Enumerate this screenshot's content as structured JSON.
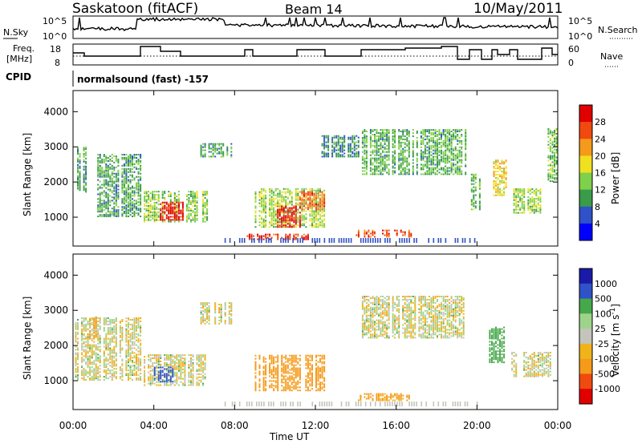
{
  "header": {
    "title": "Saskatoon (fitACF)",
    "beam": "Beam 14",
    "date": "10/May/2011"
  },
  "panels": {
    "nsky_label": "N.Sky",
    "nsky_ticks": [
      "10^5",
      "10^0"
    ],
    "nsearch_ticks": [
      "10^5",
      "10^0"
    ],
    "nsearch_label": "N.Search",
    "freq_label_1": "Freq.",
    "freq_label_2": "[MHz]",
    "freq_ticks": [
      "18",
      "8"
    ],
    "nave_ticks": [
      "60",
      "0"
    ],
    "nave_label": "Nave",
    "cpid_label": "CPID",
    "cpid_text": "normalsound (fast) -157"
  },
  "colors": {
    "power": [
      "#0000ff",
      "#2f52c8",
      "#3a9b4a",
      "#7fd04a",
      "#f0e020",
      "#f59a1a",
      "#f04a10",
      "#e00000"
    ],
    "velocity": [
      "#e00000",
      "#f04a10",
      "#f59a1a",
      "#f0b41a",
      "#c4c4bc",
      "#9ed48a",
      "#46a84a",
      "#2f52c8",
      "#1a1aa8"
    ]
  },
  "chart_data": [
    {
      "type": "heatmap",
      "name": "Power",
      "ylabel": "Slant Range [km]",
      "xlabel": "Time UT",
      "xticks": [
        "00:00",
        "04:00",
        "08:00",
        "12:00",
        "16:00",
        "20:00",
        "00:00"
      ],
      "yticks": [
        "1000",
        "2000",
        "3000",
        "4000"
      ],
      "xlim_hours": [
        0,
        24
      ],
      "ylim_km": [
        180,
        4600
      ],
      "colorbar_label": "Power [dB]",
      "colorbar_ticks": [
        "28",
        "24",
        "20",
        "16",
        "12",
        "8",
        "4"
      ],
      "clim": [
        0,
        30
      ],
      "echo_regions": [
        {
          "t0": 0.1,
          "t1": 0.9,
          "r0": 1700,
          "r1": 3000,
          "val": 10
        },
        {
          "t0": 0.9,
          "t1": 3.4,
          "r0": 1000,
          "r1": 2800,
          "val": 10
        },
        {
          "t0": 3.5,
          "t1": 6.6,
          "r0": 850,
          "r1": 1750,
          "val": 13
        },
        {
          "t0": 4.3,
          "t1": 5.4,
          "r0": 900,
          "r1": 1400,
          "val": 28
        },
        {
          "t0": 6.3,
          "t1": 7.8,
          "r0": 2700,
          "r1": 3100,
          "val": 10
        },
        {
          "t0": 8.6,
          "t1": 11.6,
          "r0": 350,
          "r1": 500,
          "val": 26
        },
        {
          "t0": 9.0,
          "t1": 12.5,
          "r0": 700,
          "r1": 1800,
          "val": 14
        },
        {
          "t0": 10.0,
          "t1": 11.2,
          "r0": 700,
          "r1": 1300,
          "val": 27
        },
        {
          "t0": 11.2,
          "t1": 12.4,
          "r0": 1200,
          "r1": 1700,
          "val": 23
        },
        {
          "t0": 12.3,
          "t1": 14.1,
          "r0": 2700,
          "r1": 3300,
          "val": 8
        },
        {
          "t0": 14.0,
          "t1": 16.8,
          "r0": 420,
          "r1": 620,
          "val": 24
        },
        {
          "t0": 14.3,
          "t1": 19.5,
          "r0": 2200,
          "r1": 3500,
          "val": 11
        },
        {
          "t0": 19.6,
          "t1": 20.2,
          "r0": 1200,
          "r1": 2200,
          "val": 12
        },
        {
          "t0": 20.8,
          "t1": 21.5,
          "r0": 1600,
          "r1": 2600,
          "val": 18
        },
        {
          "t0": 21.8,
          "t1": 23.2,
          "r0": 1100,
          "r1": 1800,
          "val": 14
        },
        {
          "t0": 23.5,
          "t1": 24.0,
          "r0": 2000,
          "r1": 3500,
          "val": 12
        }
      ]
    },
    {
      "type": "heatmap",
      "name": "Velocity",
      "ylabel": "Slant Range [km]",
      "xlabel": "Time UT",
      "xticks": [
        "00:00",
        "04:00",
        "08:00",
        "12:00",
        "16:00",
        "20:00",
        "00:00"
      ],
      "yticks": [
        "1000",
        "2000",
        "3000",
        "4000"
      ],
      "xlim_hours": [
        0,
        24
      ],
      "ylim_km": [
        180,
        4600
      ],
      "colorbar_label": "Velocity [m s^-1]",
      "colorbar_ticks": [
        "1000",
        "500",
        "100",
        "25",
        "-25",
        "-100",
        "-500",
        "-1000"
      ],
      "clim": [
        -1000,
        1000
      ],
      "echo_regions": [
        {
          "t0": 0.1,
          "t1": 3.4,
          "r0": 1000,
          "r1": 2800,
          "val": 0
        },
        {
          "t0": 0.6,
          "t1": 1.4,
          "r0": 2200,
          "r1": 2800,
          "val": -300
        },
        {
          "t0": 3.5,
          "t1": 6.6,
          "r0": 850,
          "r1": 1750,
          "val": 0
        },
        {
          "t0": 3.8,
          "t1": 5.0,
          "r0": 950,
          "r1": 1400,
          "val": 600
        },
        {
          "t0": 6.3,
          "t1": 7.8,
          "r0": 2600,
          "r1": 3200,
          "val": 0
        },
        {
          "t0": 9.0,
          "t1": 12.5,
          "r0": 700,
          "r1": 1700,
          "val": -300
        },
        {
          "t0": 14.0,
          "t1": 16.8,
          "r0": 420,
          "r1": 620,
          "val": -150
        },
        {
          "t0": 14.3,
          "t1": 19.5,
          "r0": 2200,
          "r1": 3400,
          "val": 0
        },
        {
          "t0": 20.6,
          "t1": 21.4,
          "r0": 1500,
          "r1": 2500,
          "val": 300
        },
        {
          "t0": 21.7,
          "t1": 23.8,
          "r0": 1100,
          "r1": 1800,
          "val": 0
        }
      ]
    }
  ]
}
